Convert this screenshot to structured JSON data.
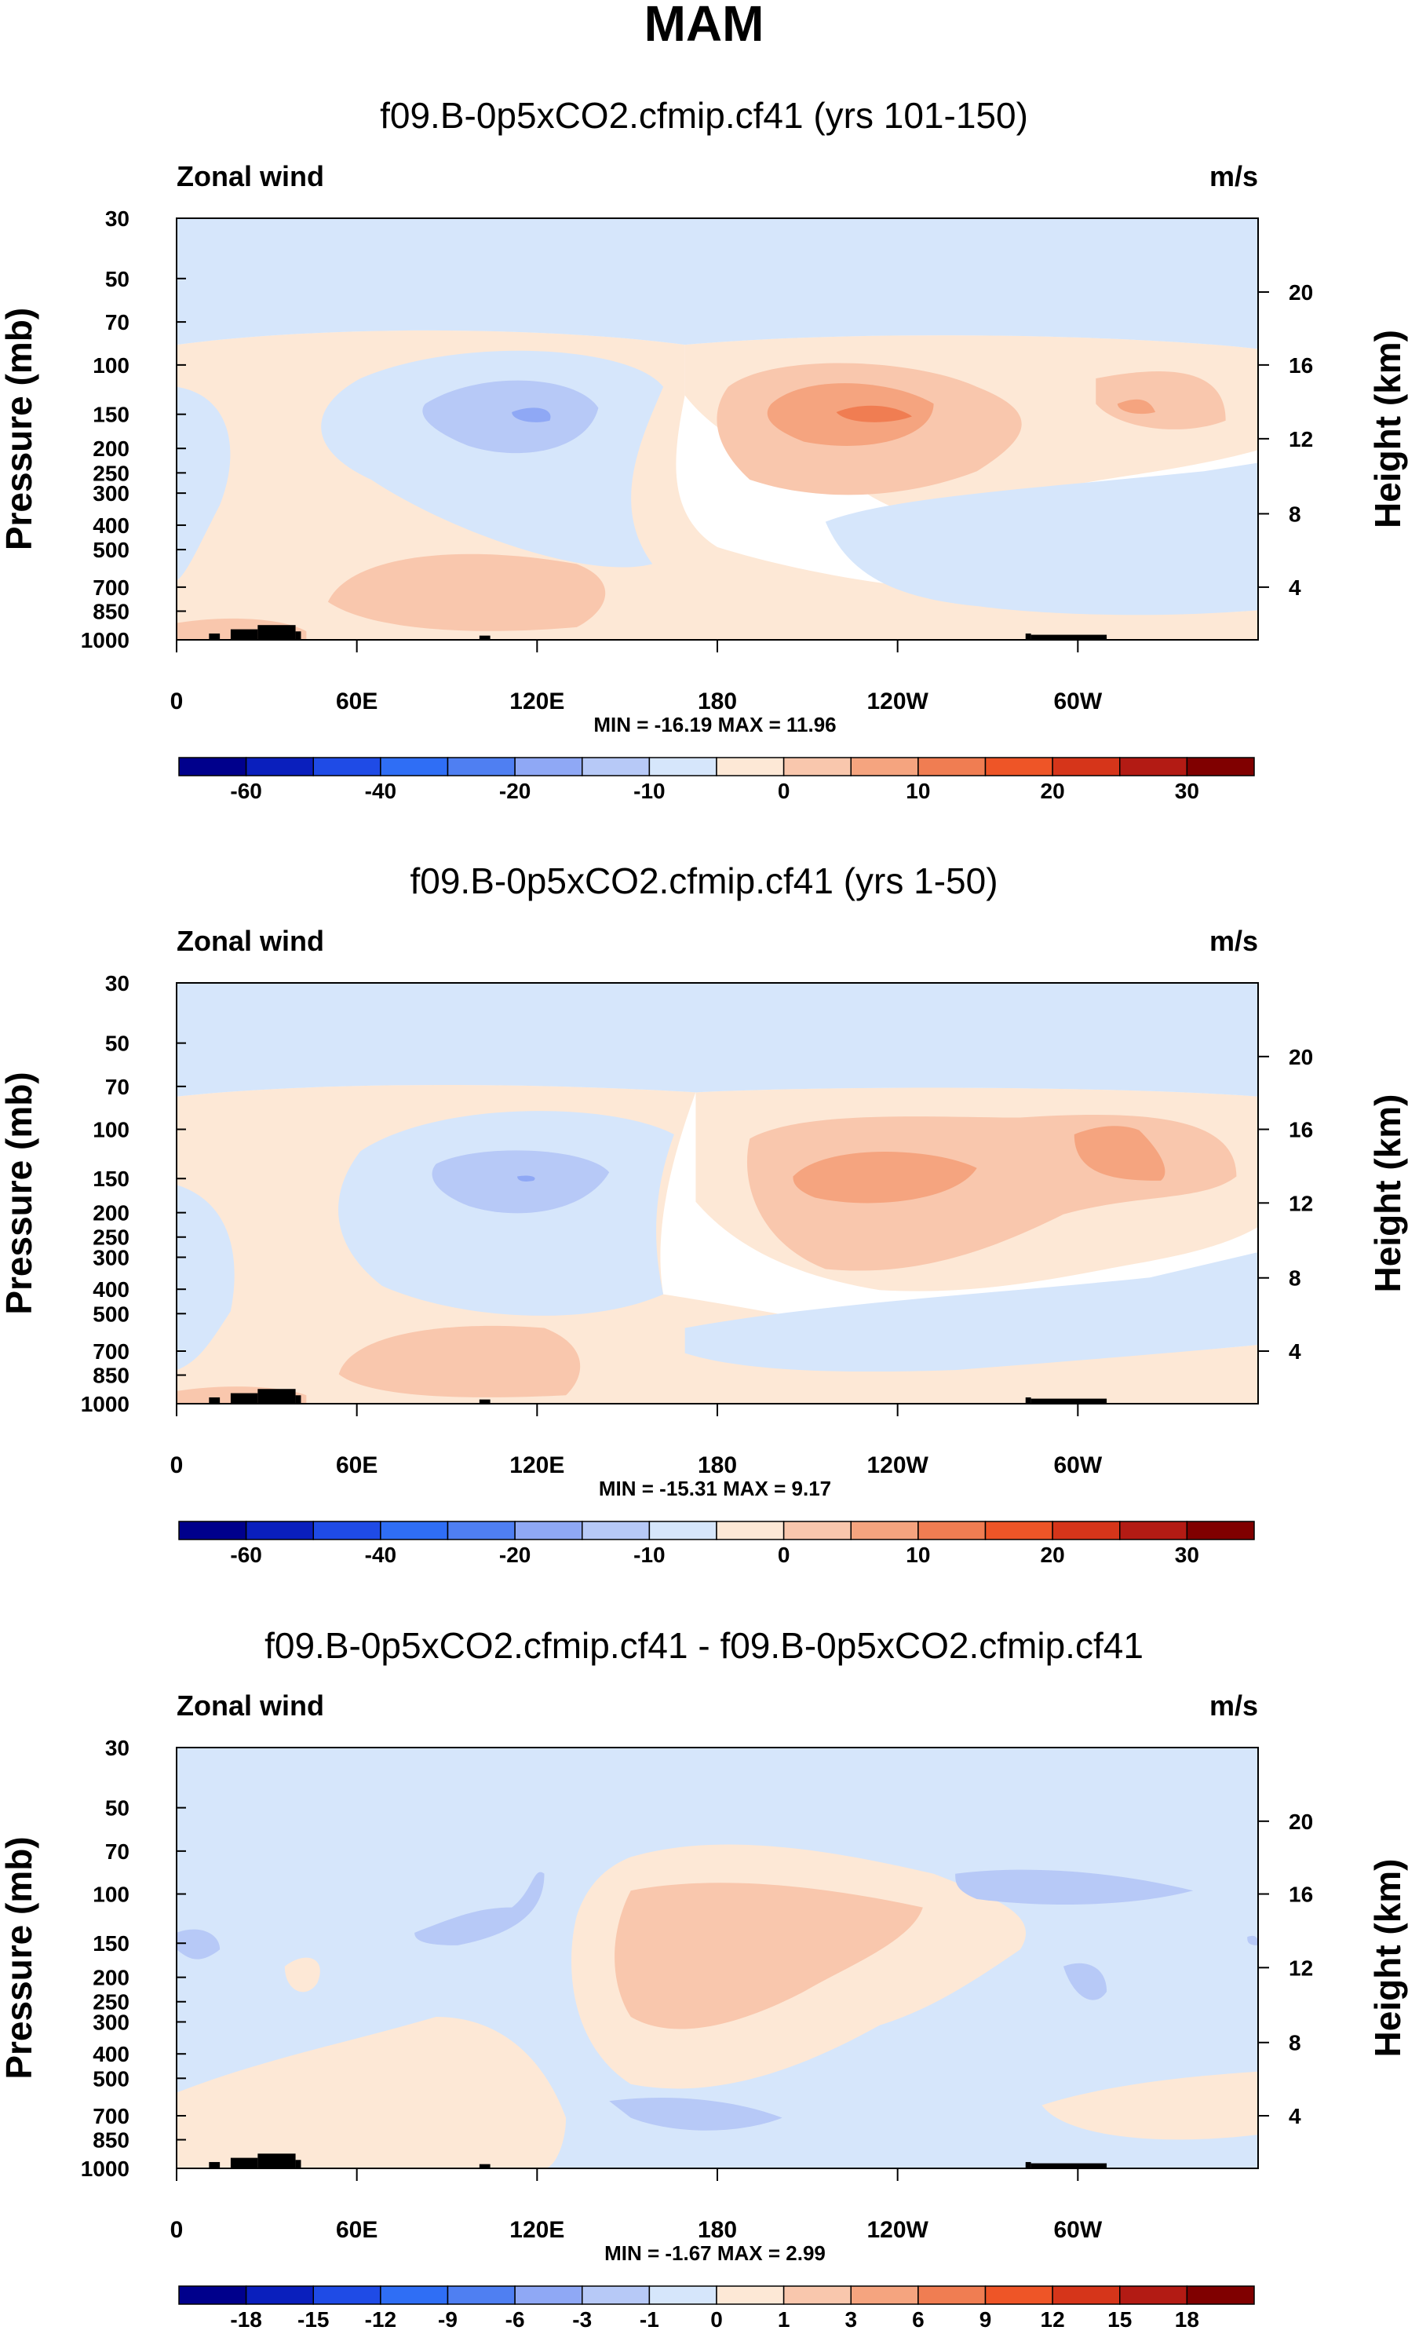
{
  "figure": {
    "title": "MAM",
    "colors": {
      "palette": [
        "#00008c",
        "#0a1fbd",
        "#1f4be6",
        "#2f6ef5",
        "#4f7ff2",
        "#8fa8f5",
        "#b7c9f7",
        "#d6e6fb",
        "#fde8d6",
        "#f9c7ad",
        "#f5a47f",
        "#f07d52",
        "#ee5527",
        "#d6351a",
        "#b31b14",
        "#800000"
      ],
      "shading": {
        "neg3": "#4f7ff2",
        "neg2": "#8fa8f5",
        "neg1": "#b7c9f7",
        "neg0": "#d6e6fb",
        "pos0": "#fde8d6",
        "pos1": "#f9c7ad",
        "pos2": "#f5a47f",
        "pos3": "#f07d52",
        "topo": "#000000"
      }
    }
  },
  "chart_data": [
    {
      "type": "heatmap",
      "title": "f09.B-0p5xCO2.cfmip.cf41 (yrs 101-150)",
      "left_label": "Zonal wind",
      "right_label": "m/s",
      "ylabel": "Pressure (mb)",
      "y2label": "Height (km)",
      "x_ticks": [
        "0",
        "60E",
        "120E",
        "180",
        "120W",
        "60W"
      ],
      "y_ticks": [
        "30",
        "50",
        "70",
        "100",
        "150",
        "200",
        "250",
        "300",
        "400",
        "500",
        "700",
        "850",
        "1000"
      ],
      "y2_ticks": [
        "20",
        "16",
        "12",
        "8",
        "4"
      ],
      "stats": "MIN = -16.19  MAX = 11.96",
      "colorbar_labels": [
        "-60",
        "-40",
        "-20",
        "-10",
        "0",
        "10",
        "20",
        "30"
      ],
      "min": -16.19,
      "max": 11.96
    },
    {
      "type": "heatmap",
      "title": "f09.B-0p5xCO2.cfmip.cf41 (yrs 1-50)",
      "left_label": "Zonal wind",
      "right_label": "m/s",
      "ylabel": "Pressure (mb)",
      "y2label": "Height (km)",
      "x_ticks": [
        "0",
        "60E",
        "120E",
        "180",
        "120W",
        "60W"
      ],
      "y_ticks": [
        "30",
        "50",
        "70",
        "100",
        "150",
        "200",
        "250",
        "300",
        "400",
        "500",
        "700",
        "850",
        "1000"
      ],
      "y2_ticks": [
        "20",
        "16",
        "12",
        "8",
        "4"
      ],
      "stats": "MIN = -15.31  MAX =  9.17",
      "colorbar_labels": [
        "-60",
        "-40",
        "-20",
        "-10",
        "0",
        "10",
        "20",
        "30"
      ],
      "min": -15.31,
      "max": 9.17
    },
    {
      "type": "heatmap",
      "title": "f09.B-0p5xCO2.cfmip.cf41 - f09.B-0p5xCO2.cfmip.cf41",
      "left_label": "Zonal wind",
      "right_label": "m/s",
      "ylabel": "Pressure (mb)",
      "y2label": "Height (km)",
      "x_ticks": [
        "0",
        "60E",
        "120E",
        "180",
        "120W",
        "60W"
      ],
      "y_ticks": [
        "30",
        "50",
        "70",
        "100",
        "150",
        "200",
        "250",
        "300",
        "400",
        "500",
        "700",
        "850",
        "1000"
      ],
      "y2_ticks": [
        "20",
        "16",
        "12",
        "8",
        "4"
      ],
      "stats": "MIN = -1.67  MAX =  2.99",
      "colorbar_labels": [
        "-18",
        "-15",
        "-12",
        "-9",
        "-6",
        "-3",
        "-1",
        "0",
        "1",
        "3",
        "6",
        "9",
        "12",
        "15",
        "18"
      ],
      "min": -1.67,
      "max": 2.99
    }
  ]
}
